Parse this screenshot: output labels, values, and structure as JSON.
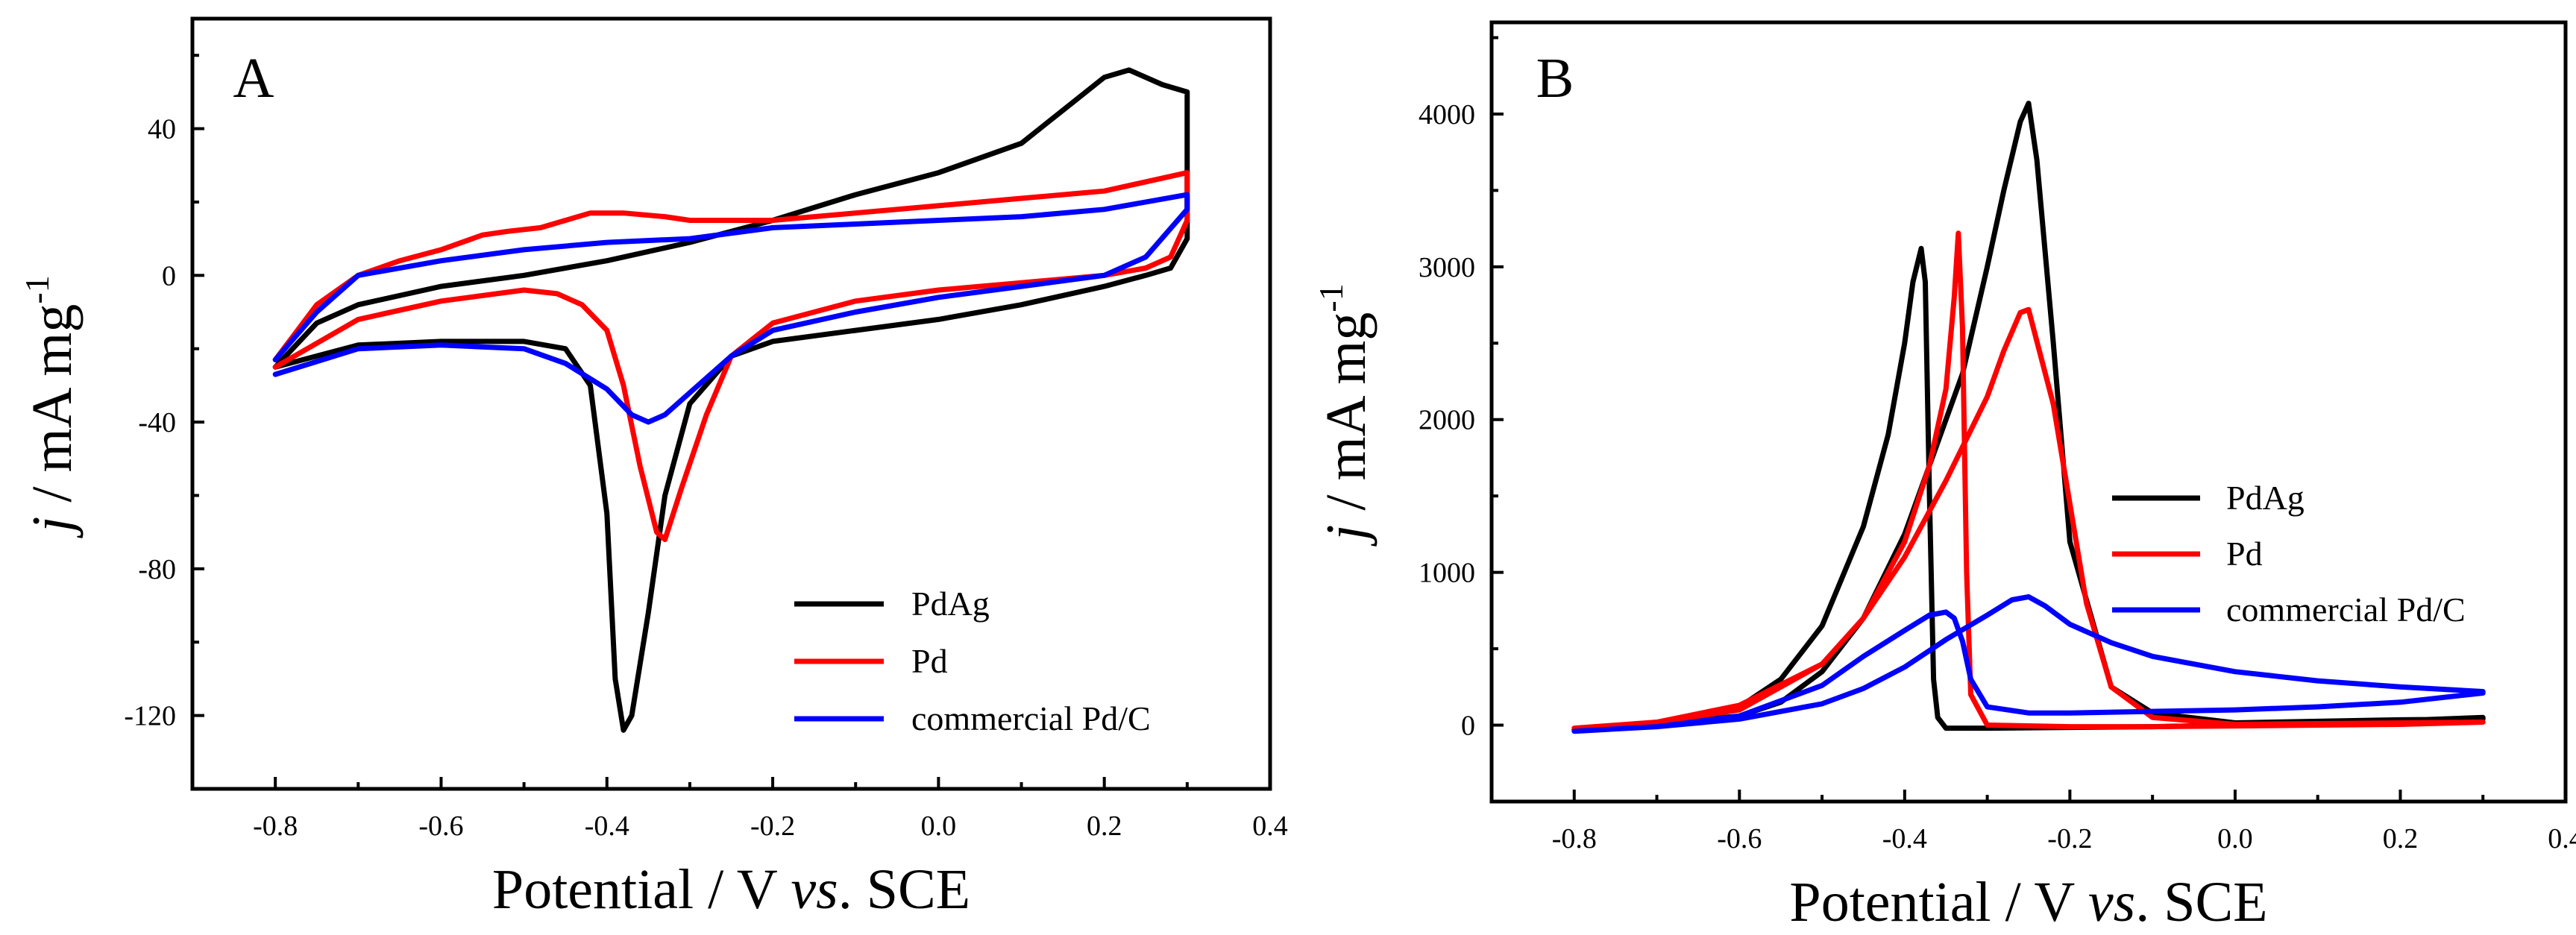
{
  "chart_data": [
    {
      "panel": "A",
      "type": "line",
      "xlabel": {
        "prefix": "Potential / V ",
        "italic": "vs",
        "suffix": ". SCE"
      },
      "ylabel": {
        "italic": "j",
        "main": " / mA mg",
        "sup": "-1"
      },
      "xlim": [
        -0.9,
        0.4
      ],
      "ylim": [
        -140,
        70
      ],
      "xticks": [
        -0.8,
        -0.6,
        -0.4,
        -0.2,
        0.0,
        0.2,
        0.4
      ],
      "xtick_labels": [
        "-0.8",
        "-0.6",
        "-0.4",
        "-0.2",
        "0.0",
        "0.2",
        "0.4"
      ],
      "yticks": [
        -120,
        -80,
        -40,
        0,
        40
      ],
      "ytick_labels": [
        "-120",
        "-80",
        "-40",
        "0",
        "40"
      ],
      "legend_position": "bottom-right",
      "series": [
        {
          "name": "PdAg",
          "color": "#000000",
          "x": [
            -0.8,
            -0.75,
            -0.7,
            -0.6,
            -0.5,
            -0.4,
            -0.3,
            -0.2,
            -0.1,
            0.0,
            0.1,
            0.15,
            0.2,
            0.23,
            0.27,
            0.3,
            0.3,
            0.28,
            0.25,
            0.2,
            0.1,
            0.0,
            -0.1,
            -0.2,
            -0.25,
            -0.3,
            -0.33,
            -0.35,
            -0.37,
            -0.38,
            -0.39,
            -0.4,
            -0.42,
            -0.45,
            -0.5,
            -0.6,
            -0.7,
            -0.8
          ],
          "y": [
            -25,
            -13,
            -8,
            -3,
            0,
            4,
            9,
            15,
            22,
            28,
            36,
            45,
            54,
            56,
            52,
            50,
            10,
            2,
            0,
            -3,
            -8,
            -12,
            -15,
            -18,
            -22,
            -35,
            -60,
            -92,
            -120,
            -124,
            -110,
            -65,
            -30,
            -20,
            -18,
            -18,
            -19,
            -25
          ]
        },
        {
          "name": "Pd",
          "color": "#ff0000",
          "x": [
            -0.8,
            -0.75,
            -0.7,
            -0.65,
            -0.6,
            -0.55,
            -0.52,
            -0.48,
            -0.45,
            -0.42,
            -0.38,
            -0.33,
            -0.3,
            -0.2,
            -0.1,
            0.0,
            0.1,
            0.2,
            0.3,
            0.3,
            0.28,
            0.25,
            0.2,
            0.1,
            0.0,
            -0.1,
            -0.2,
            -0.25,
            -0.28,
            -0.31,
            -0.33,
            -0.34,
            -0.36,
            -0.38,
            -0.4,
            -0.43,
            -0.46,
            -0.5,
            -0.6,
            -0.7,
            -0.8
          ],
          "y": [
            -23,
            -8,
            0,
            4,
            7,
            11,
            12,
            13,
            15,
            17,
            17,
            16,
            15,
            15,
            17,
            19,
            21,
            23,
            28,
            15,
            5,
            2,
            0,
            -2,
            -4,
            -7,
            -13,
            -22,
            -38,
            -58,
            -72,
            -70,
            -52,
            -30,
            -15,
            -8,
            -5,
            -4,
            -7,
            -12,
            -25
          ]
        },
        {
          "name": "commercial Pd/C",
          "color": "#0000ff",
          "x": [
            -0.8,
            -0.75,
            -0.7,
            -0.6,
            -0.5,
            -0.4,
            -0.3,
            -0.2,
            -0.1,
            0.0,
            0.1,
            0.2,
            0.3,
            0.3,
            0.25,
            0.2,
            0.1,
            0.0,
            -0.1,
            -0.2,
            -0.25,
            -0.3,
            -0.33,
            -0.35,
            -0.37,
            -0.4,
            -0.45,
            -0.5,
            -0.6,
            -0.7,
            -0.8
          ],
          "y": [
            -23,
            -10,
            0,
            4,
            7,
            9,
            10,
            13,
            14,
            15,
            16,
            18,
            22,
            18,
            5,
            0,
            -3,
            -6,
            -10,
            -15,
            -22,
            -32,
            -38,
            -40,
            -38,
            -31,
            -24,
            -20,
            -19,
            -20,
            -27
          ]
        }
      ]
    },
    {
      "panel": "B",
      "type": "line",
      "xlabel": {
        "prefix": "Potential / V ",
        "italic": "vs",
        "suffix": ". SCE"
      },
      "ylabel": {
        "italic": "j",
        "main": " / mA mg",
        "sup": "-1"
      },
      "xlim": [
        -0.9,
        0.4
      ],
      "ylim": [
        -500,
        4600
      ],
      "xticks": [
        -0.8,
        -0.6,
        -0.4,
        -0.2,
        0.0,
        0.2,
        0.4
      ],
      "xtick_labels": [
        "-0.8",
        "-0.6",
        "-0.4",
        "-0.2",
        "0.0",
        "0.2",
        "0.4"
      ],
      "yticks": [
        0,
        1000,
        2000,
        3000,
        4000
      ],
      "ytick_labels": [
        "0",
        "1000",
        "2000",
        "3000",
        "4000"
      ],
      "legend_position": "right",
      "series": [
        {
          "name": "PdAg",
          "color": "#000000",
          "x": [
            -0.8,
            -0.7,
            -0.6,
            -0.55,
            -0.5,
            -0.45,
            -0.42,
            -0.4,
            -0.39,
            -0.38,
            -0.375,
            -0.37,
            -0.365,
            -0.36,
            -0.35,
            -0.3,
            -0.2,
            -0.1,
            0.0,
            0.1,
            0.2,
            0.3,
            0.3,
            0.2,
            0.1,
            0.0,
            -0.1,
            -0.15,
            -0.2,
            -0.22,
            -0.24,
            -0.25,
            -0.26,
            -0.28,
            -0.3,
            -0.33,
            -0.37,
            -0.4,
            -0.45,
            -0.5,
            -0.55,
            -0.6,
            -0.7,
            -0.8
          ],
          "y": [
            -30,
            10,
            120,
            300,
            650,
            1300,
            1900,
            2500,
            2900,
            3120,
            2900,
            1500,
            300,
            50,
            -20,
            -20,
            -15,
            -10,
            0,
            15,
            30,
            50,
            40,
            35,
            25,
            15,
            80,
            250,
            1200,
            2500,
            3700,
            4070,
            3950,
            3500,
            3000,
            2300,
            1700,
            1250,
            700,
            350,
            150,
            60,
            10,
            -30
          ]
        },
        {
          "name": "Pd",
          "color": "#ff0000",
          "x": [
            -0.8,
            -0.7,
            -0.6,
            -0.5,
            -0.45,
            -0.4,
            -0.37,
            -0.35,
            -0.34,
            -0.335,
            -0.33,
            -0.325,
            -0.32,
            -0.3,
            -0.2,
            -0.1,
            0.0,
            0.1,
            0.2,
            0.3,
            0.3,
            0.2,
            0.1,
            0.0,
            -0.1,
            -0.15,
            -0.18,
            -0.22,
            -0.25,
            -0.26,
            -0.28,
            -0.3,
            -0.35,
            -0.4,
            -0.45,
            -0.5,
            -0.6,
            -0.7,
            -0.8
          ],
          "y": [
            -20,
            20,
            100,
            400,
            700,
            1200,
            1700,
            2200,
            2800,
            3220,
            2600,
            1000,
            200,
            0,
            -10,
            -10,
            -5,
            0,
            5,
            20,
            20,
            15,
            10,
            5,
            50,
            250,
            800,
            2100,
            2720,
            2700,
            2450,
            2150,
            1600,
            1100,
            700,
            400,
            130,
            20,
            -20
          ]
        },
        {
          "name": "commercial Pd/C",
          "color": "#0000ff",
          "x": [
            -0.8,
            -0.7,
            -0.6,
            -0.5,
            -0.45,
            -0.4,
            -0.37,
            -0.35,
            -0.34,
            -0.33,
            -0.32,
            -0.3,
            -0.25,
            -0.2,
            -0.1,
            0.0,
            0.1,
            0.2,
            0.3,
            0.3,
            0.2,
            0.1,
            0.0,
            -0.05,
            -0.1,
            -0.15,
            -0.2,
            -0.23,
            -0.25,
            -0.27,
            -0.3,
            -0.35,
            -0.4,
            -0.45,
            -0.5,
            -0.6,
            -0.7,
            -0.8
          ],
          "y": [
            -40,
            -10,
            60,
            260,
            450,
            620,
            720,
            740,
            700,
            550,
            300,
            120,
            80,
            80,
            90,
            100,
            120,
            150,
            210,
            220,
            250,
            290,
            350,
            400,
            450,
            540,
            660,
            780,
            840,
            820,
            720,
            560,
            380,
            240,
            140,
            40,
            -10,
            -40
          ]
        }
      ]
    }
  ]
}
